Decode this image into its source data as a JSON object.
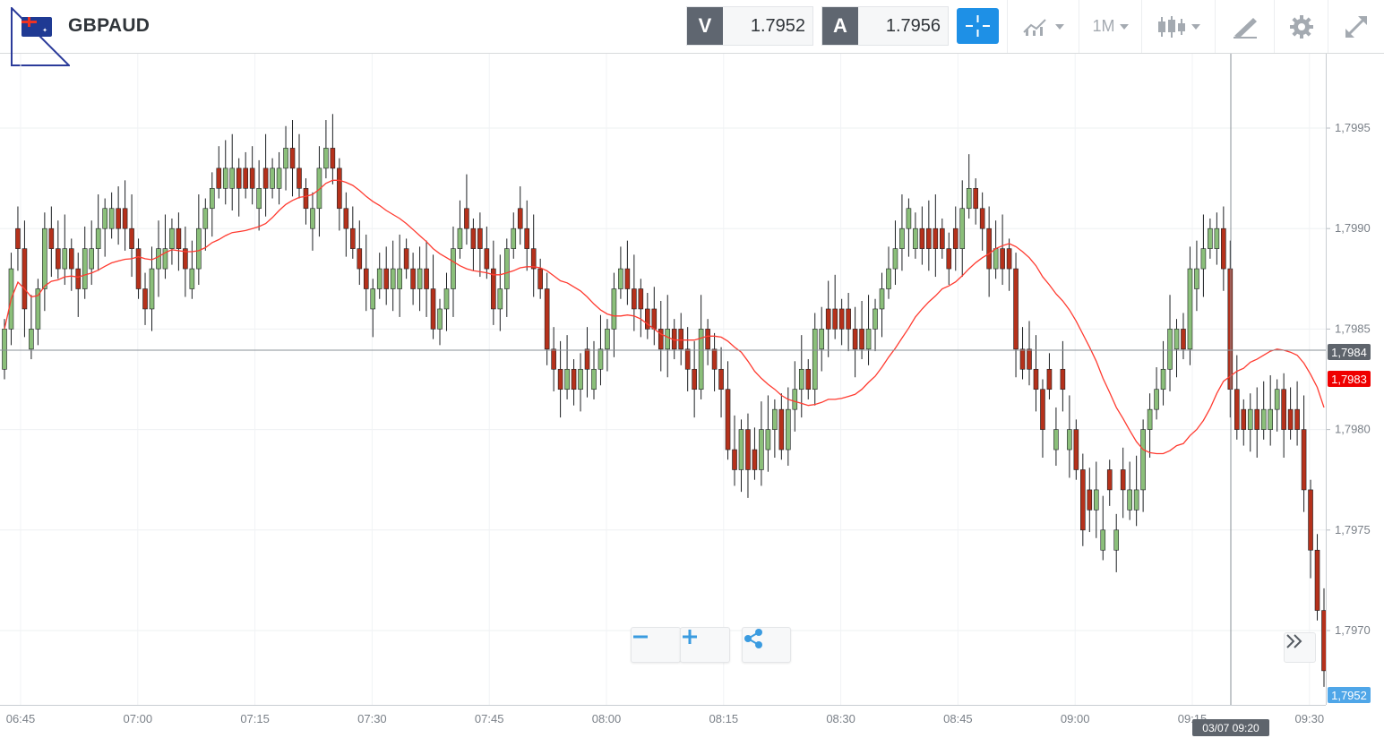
{
  "instrument": {
    "symbol": "GBPAUD",
    "flag_icon": "gb-au-flag-icon"
  },
  "quote": {
    "sell_label": "V",
    "sell_price": "1.7952",
    "buy_label": "A",
    "buy_price": "1.7956"
  },
  "toolbar": {
    "crosshair_icon": "crosshair-icon",
    "indicators_icon": "indicators-icon",
    "timeframe": "1M",
    "chart_type_icon": "candlestick-icon",
    "drawing_icon": "drawing-tools-icon",
    "settings_icon": "gear-icon",
    "expand_icon": "expand-icon"
  },
  "chart": {
    "accent_color": "#1e90e6",
    "up_color": "#8bbf7a",
    "down_color": "#b5311b",
    "ma_color": "#ff3b30",
    "crosshair_price": "1,7984",
    "ma_price": "1,7983",
    "last_price": "1,7952",
    "crosshair_time": "03/07 09:20",
    "zoom_out_icon": "minus-icon",
    "zoom_in_icon": "plus-icon",
    "share_icon": "share-icon",
    "scroll_icon": "double-chevron-right-icon"
  },
  "chart_data": {
    "type": "candlestick",
    "title": "",
    "interval": "1M",
    "y_ticks": [
      "1,7995",
      "1,7990",
      "1,7985",
      "1,7980",
      "1,7975",
      "1,7970"
    ],
    "y_tick_values": [
      1.7995,
      1.799,
      1.7985,
      1.798,
      1.7975,
      1.797
    ],
    "x_ticks": [
      "06:45",
      "07:00",
      "07:15",
      "07:30",
      "07:45",
      "08:00",
      "08:15",
      "08:30",
      "08:45",
      "09:00",
      "09:15",
      "09:30"
    ],
    "ylim": [
      1.79665,
      1.79985
    ],
    "close": [
      1.7985,
      1.7988,
      1.7989,
      1.7986,
      1.7985,
      1.7987,
      1.799,
      1.7989,
      1.7988,
      1.7989,
      1.7988,
      1.7987,
      1.7989,
      1.7989,
      1.799,
      1.7991,
      1.7991,
      1.799,
      1.799,
      1.7989,
      1.7987,
      1.7986,
      1.7988,
      1.7989,
      1.7989,
      1.799,
      1.7989,
      1.7988,
      1.7988,
      1.799,
      1.7991,
      1.7992,
      1.7992,
      1.7993,
      1.7993,
      1.7992,
      1.7992,
      1.7992,
      1.7992,
      1.7992,
      1.7993,
      1.7993,
      1.7994,
      1.7993,
      1.7992,
      1.7991,
      1.7991,
      1.7993,
      1.7994,
      1.7993,
      1.7991,
      1.799,
      1.7989,
      1.7988,
      1.7987,
      1.7987,
      1.7988,
      1.7987,
      1.7988,
      1.7988,
      1.7988,
      1.7987,
      1.7988,
      1.7987,
      1.7985,
      1.7986,
      1.7987,
      1.7989,
      1.799,
      1.799,
      1.7989,
      1.7989,
      1.7988,
      1.7986,
      1.7987,
      1.7989,
      1.799,
      1.799,
      1.7989,
      1.7988,
      1.7987,
      1.7984,
      1.7983,
      1.7982,
      1.7983,
      1.7982,
      1.7983,
      1.7983,
      1.7983,
      1.7984,
      1.7985,
      1.7987,
      1.7988,
      1.7987,
      1.7986,
      1.7986,
      1.7985,
      1.7985,
      1.7984,
      1.7985,
      1.7984,
      1.7984,
      1.7983,
      1.7982,
      1.7985,
      1.7984,
      1.7983,
      1.7982,
      1.7979,
      1.7978,
      1.798,
      1.7978,
      1.7978,
      1.798,
      1.798,
      1.7981,
      1.7979,
      1.7981,
      1.7982,
      1.7983,
      1.7982,
      1.7985,
      1.7985,
      1.7985,
      1.7985,
      1.7985,
      1.7985,
      1.7984,
      1.7984,
      1.7985,
      1.7986,
      1.7987,
      1.7988,
      1.7989,
      1.799,
      1.7991,
      1.799,
      1.7989,
      1.7989,
      1.7989,
      1.7989,
      1.7988,
      1.7989,
      1.7991,
      1.7992,
      1.7991,
      1.799,
      1.7988,
      1.7989,
      1.7988,
      1.7988,
      1.7984,
      1.7983,
      1.7983,
      1.7982,
      1.798,
      1.7982,
      1.798,
      1.7982,
      1.798,
      1.7978,
      1.7975,
      1.7976,
      1.7977,
      1.7975,
      1.7977,
      1.7975,
      1.7977,
      1.7977,
      1.7977,
      1.798,
      1.7981,
      1.7982,
      1.7983,
      1.7985,
      1.7985,
      1.7984,
      1.7988,
      1.7988,
      1.7989,
      1.799,
      1.799,
      1.7988,
      1.7982,
      1.798,
      1.798,
      1.7981,
      1.798,
      1.7981,
      1.7981,
      1.7982,
      1.798,
      1.798,
      1.798,
      1.7977,
      1.7974,
      1.7971,
      1.7968
    ],
    "up": [
      1,
      1,
      0,
      0,
      1,
      1,
      1,
      0,
      0,
      1,
      0,
      0,
      1,
      1,
      1,
      1,
      1,
      0,
      0,
      0,
      0,
      0,
      1,
      1,
      1,
      1,
      0,
      0,
      1,
      1,
      1,
      1,
      0,
      1,
      1,
      0,
      0,
      0,
      1,
      0,
      1,
      1,
      1,
      0,
      0,
      0,
      1,
      1,
      1,
      0,
      0,
      0,
      0,
      0,
      0,
      1,
      1,
      0,
      1,
      1,
      0,
      0,
      1,
      0,
      0,
      1,
      1,
      1,
      1,
      0,
      0,
      0,
      0,
      0,
      1,
      1,
      1,
      0,
      0,
      0,
      0,
      0,
      0,
      0,
      1,
      0,
      1,
      0,
      1,
      1,
      1,
      1,
      1,
      0,
      0,
      0,
      0,
      0,
      0,
      1,
      0,
      0,
      0,
      0,
      1,
      0,
      0,
      0,
      0,
      0,
      1,
      0,
      0,
      1,
      1,
      1,
      0,
      1,
      1,
      1,
      0,
      1,
      1,
      0,
      0,
      0,
      0,
      0,
      0,
      1,
      1,
      1,
      1,
      1,
      1,
      1,
      1,
      0,
      0,
      0,
      0,
      0,
      0,
      1,
      1,
      0,
      0,
      0,
      1,
      0,
      0,
      0,
      0,
      0,
      0,
      0,
      0,
      1,
      0,
      1,
      0,
      0,
      0,
      1,
      1,
      0,
      1,
      0,
      1,
      1,
      1,
      1,
      1,
      1,
      1,
      1,
      0,
      1,
      1,
      1,
      1,
      1,
      0,
      0,
      0,
      0,
      1,
      0,
      1,
      1,
      1,
      0,
      0,
      0,
      0,
      0,
      0,
      0
    ]
  }
}
